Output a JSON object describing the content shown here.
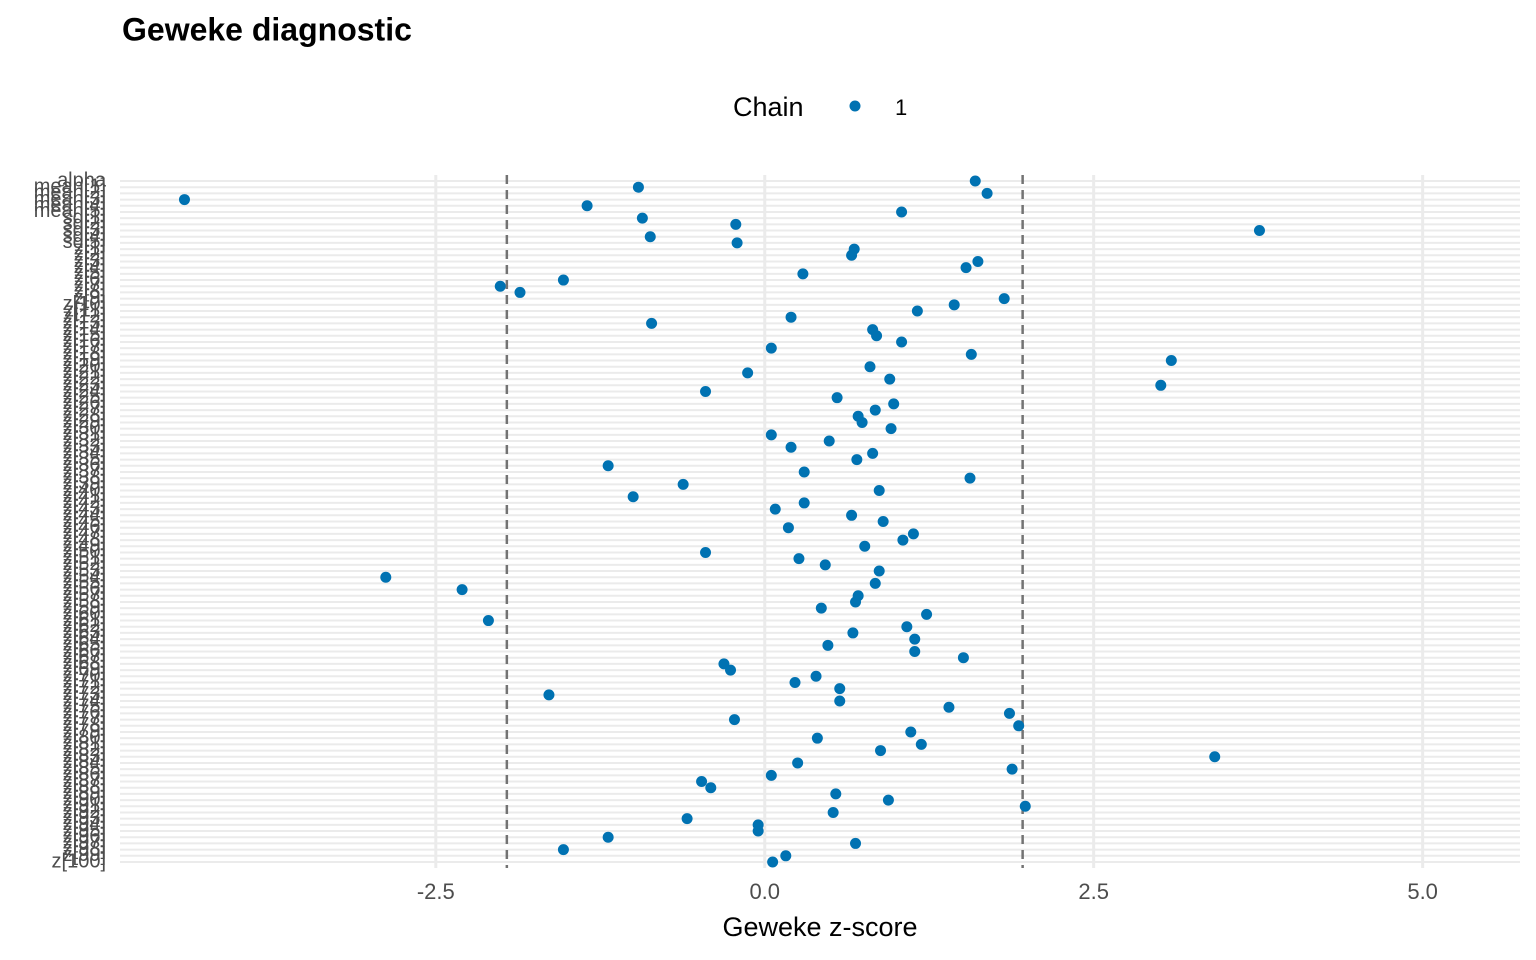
{
  "chart_data": {
    "type": "dot",
    "title": "Geweke diagnostic",
    "legend_title": "Chain",
    "legend_position": "top",
    "x_label": "Geweke z-score",
    "xlim": [
      -4.9,
      5.74
    ],
    "xticks": [
      -2.5,
      {
        "value": 0,
        "label": "0.0"
      },
      2.5,
      {
        "value": 5,
        "label": "5.0"
      }
    ],
    "reference_lines": [
      -1.96,
      1.96
    ],
    "grid": true,
    "categories": [
      "alpha",
      "mean[1]",
      "mean[2]",
      "mean[3]",
      "mean[4]",
      "mean[5]",
      "sd[1]",
      "sd[2]",
      "sd[3]",
      "sd[4]",
      "sd[5]",
      "z[1]",
      "z[2]",
      "z[3]",
      "z[4]",
      "z[5]",
      "z[6]",
      "z[7]",
      "z[8]",
      "z[9]",
      "z[10]",
      "z[11]",
      "z[12]",
      "z[13]",
      "z[14]",
      "z[15]",
      "z[16]",
      "z[17]",
      "z[18]",
      "z[19]",
      "z[20]",
      "z[21]",
      "z[22]",
      "z[23]",
      "z[24]",
      "z[25]",
      "z[26]",
      "z[27]",
      "z[28]",
      "z[29]",
      "z[30]",
      "z[31]",
      "z[32]",
      "z[33]",
      "z[34]",
      "z[35]",
      "z[36]",
      "z[37]",
      "z[38]",
      "z[39]",
      "z[40]",
      "z[41]",
      "z[42]",
      "z[43]",
      "z[44]",
      "z[45]",
      "z[46]",
      "z[47]",
      "z[48]",
      "z[49]",
      "z[50]",
      "z[51]",
      "z[52]",
      "z[53]",
      "z[54]",
      "z[55]",
      "z[56]",
      "z[57]",
      "z[58]",
      "z[59]",
      "z[60]",
      "z[61]",
      "z[62]",
      "z[63]",
      "z[64]",
      "z[65]",
      "z[66]",
      "z[67]",
      "z[68]",
      "z[69]",
      "z[70]",
      "z[71]",
      "z[72]",
      "z[73]",
      "z[74]",
      "z[75]",
      "z[76]",
      "z[77]",
      "z[78]",
      "z[79]",
      "z[80]",
      "z[81]",
      "z[82]",
      "z[83]",
      "z[84]",
      "z[85]",
      "z[86]",
      "z[87]",
      "z[88]",
      "z[89]",
      "z[90]",
      "z[91]",
      "z[92]",
      "z[93]",
      "z[94]",
      "z[95]",
      "z[96]",
      "z[97]",
      "z[98]",
      "z[99]",
      "z[100]"
    ],
    "series": [
      {
        "name": "1",
        "color": "#0072b2",
        "values": [
          1.6,
          -0.96,
          1.69,
          -4.41,
          -1.35,
          1.04,
          -0.93,
          -0.22,
          3.76,
          -0.87,
          -0.21,
          0.68,
          0.66,
          1.62,
          1.53,
          0.29,
          -1.53,
          -2.01,
          -1.86,
          1.82,
          1.44,
          1.16,
          0.2,
          -0.86,
          0.82,
          0.85,
          1.04,
          0.05,
          1.57,
          3.09,
          0.8,
          -0.13,
          0.95,
          3.01,
          -0.45,
          0.55,
          0.98,
          0.84,
          0.71,
          0.74,
          0.96,
          0.05,
          0.49,
          0.2,
          0.82,
          0.7,
          -1.19,
          0.3,
          1.56,
          -0.62,
          0.87,
          -1.0,
          0.3,
          0.08,
          0.66,
          0.9,
          0.18,
          1.13,
          1.05,
          0.76,
          -0.45,
          0.26,
          0.46,
          0.87,
          -2.88,
          0.84,
          -2.3,
          0.71,
          0.69,
          0.43,
          1.23,
          -2.1,
          1.08,
          0.67,
          1.14,
          0.48,
          1.14,
          1.51,
          -0.31,
          -0.26,
          0.39,
          0.23,
          0.57,
          -1.64,
          0.57,
          1.4,
          1.86,
          -0.23,
          1.93,
          1.11,
          0.4,
          1.19,
          0.88,
          3.42,
          0.25,
          1.88,
          0.05,
          -0.48,
          -0.41,
          0.54,
          0.94,
          1.98,
          0.52,
          -0.59,
          -0.05,
          -0.05,
          -1.19,
          0.69,
          -1.53,
          0.16,
          0.06
        ]
      }
    ]
  }
}
